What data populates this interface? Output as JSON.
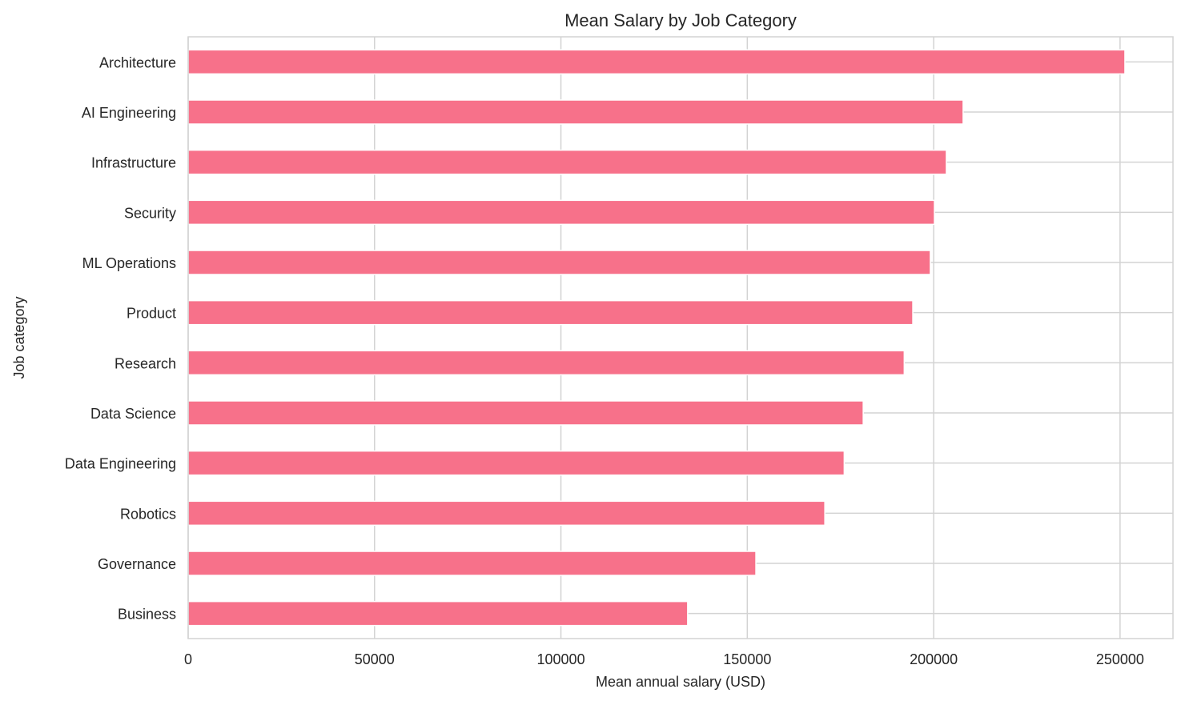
{
  "chart_data": {
    "type": "bar",
    "orientation": "horizontal",
    "title": "Mean Salary by Job Category",
    "xlabel": "Mean annual salary (USD)",
    "ylabel": "Job category",
    "xlim": [
      0,
      264200
    ],
    "xticks": [
      0,
      50000,
      100000,
      150000,
      200000,
      250000
    ],
    "grid": true,
    "bar_color": "#f7718a",
    "grid_color": "#d3d3d3",
    "categories": [
      "Architecture",
      "AI Engineering",
      "Infrastructure",
      "Security",
      "ML Operations",
      "Product",
      "Research",
      "Data Science",
      "Data Engineering",
      "Robotics",
      "Governance",
      "Business"
    ],
    "values": [
      251300,
      207900,
      203400,
      200200,
      199100,
      194400,
      192100,
      181100,
      176000,
      170800,
      152300,
      134000
    ]
  }
}
